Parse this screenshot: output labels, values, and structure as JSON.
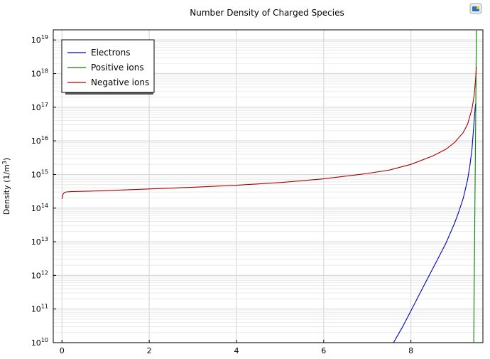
{
  "chart_data": {
    "type": "line",
    "title": "Number Density of Charged Species",
    "ylabel_prefix": "Density (1/m",
    "ylabel_exp": "3",
    "ylabel_suffix": ")",
    "xlabel": "",
    "xlim": [
      -0.2,
      9.65
    ],
    "ylim_log10": [
      10,
      19.3
    ],
    "y_scale": "log",
    "x_ticks": [
      0,
      2,
      4,
      6,
      8
    ],
    "y_tick_base": "10",
    "y_tick_exponents": [
      10,
      11,
      12,
      13,
      14,
      15,
      16,
      17,
      18,
      19
    ],
    "grid": true,
    "legend_position": "top-left",
    "series": [
      {
        "name": "Electrons",
        "color": "#0000bb",
        "x": [
          7.6,
          7.8,
          8.0,
          8.2,
          8.4,
          8.6,
          8.8,
          9.0,
          9.1,
          9.2,
          9.3,
          9.35,
          9.4,
          9.45,
          9.48
        ],
        "y_log10": [
          10.0,
          10.45,
          10.95,
          11.45,
          11.95,
          12.45,
          12.95,
          13.55,
          13.9,
          14.3,
          14.85,
          15.25,
          15.75,
          16.6,
          17.1
        ]
      },
      {
        "name": "Positive ions",
        "color": "#008800",
        "x": [
          9.44,
          9.45,
          9.46,
          9.47,
          9.48,
          9.49,
          9.5
        ],
        "y_log10": [
          10.0,
          11.5,
          13.0,
          14.5,
          16.0,
          17.6,
          19.3
        ]
      },
      {
        "name": "Negative ions",
        "color": "#aa0000",
        "x": [
          0.0,
          0.02,
          0.05,
          0.1,
          0.2,
          0.5,
          1,
          2,
          3,
          4,
          5,
          6,
          7,
          7.5,
          8,
          8.5,
          8.8,
          9.0,
          9.2,
          9.3,
          9.4,
          9.45,
          9.48,
          9.5
        ],
        "y_log10": [
          14.27,
          14.4,
          14.46,
          14.48,
          14.49,
          14.5,
          14.52,
          14.57,
          14.62,
          14.68,
          14.76,
          14.87,
          15.03,
          15.13,
          15.3,
          15.55,
          15.75,
          15.95,
          16.25,
          16.5,
          16.95,
          17.35,
          17.8,
          18.2
        ]
      }
    ]
  }
}
